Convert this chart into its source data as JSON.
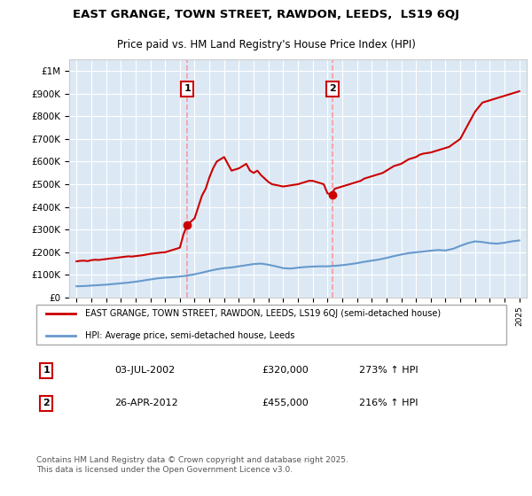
{
  "title": "EAST GRANGE, TOWN STREET, RAWDON, LEEDS,  LS19 6QJ",
  "subtitle": "Price paid vs. HM Land Registry's House Price Index (HPI)",
  "legend_line1": "EAST GRANGE, TOWN STREET, RAWDON, LEEDS, LS19 6QJ (semi-detached house)",
  "legend_line2": "HPI: Average price, semi-detached house, Leeds",
  "footer": "Contains HM Land Registry data © Crown copyright and database right 2025.\nThis data is licensed under the Open Government Licence v3.0.",
  "sale1_date": "03-JUL-2002",
  "sale1_price": 320000,
  "sale1_pct": "273% ↑ HPI",
  "sale2_date": "26-APR-2012",
  "sale2_price": 455000,
  "sale2_pct": "216% ↑ HPI",
  "sale1_year": 2002.5,
  "sale2_year": 2012.33,
  "background_color": "#dce9f5",
  "plot_bg_color": "#dce9f5",
  "red_color": "#cc0000",
  "blue_color": "#6699cc",
  "vline_color": "#ff9999",
  "ylim": [
    0,
    1050000
  ],
  "xlim": [
    1994.5,
    2025.5
  ],
  "hpi_data": {
    "years": [
      1995,
      1995.5,
      1996,
      1996.5,
      1997,
      1997.5,
      1998,
      1998.5,
      1999,
      1999.5,
      2000,
      2000.5,
      2001,
      2001.5,
      2002,
      2002.5,
      2003,
      2003.5,
      2004,
      2004.5,
      2005,
      2005.5,
      2006,
      2006.5,
      2007,
      2007.5,
      2008,
      2008.5,
      2009,
      2009.5,
      2010,
      2010.5,
      2011,
      2011.5,
      2012,
      2012.5,
      2013,
      2013.5,
      2014,
      2014.5,
      2015,
      2015.5,
      2016,
      2016.5,
      2017,
      2017.5,
      2018,
      2018.5,
      2019,
      2019.5,
      2020,
      2020.5,
      2021,
      2021.5,
      2022,
      2022.5,
      2023,
      2023.5,
      2024,
      2024.5,
      2025
    ],
    "values": [
      50000,
      51000,
      53000,
      55000,
      57000,
      60000,
      63000,
      66000,
      70000,
      75000,
      80000,
      85000,
      88000,
      90000,
      93000,
      97000,
      103000,
      110000,
      118000,
      125000,
      130000,
      133000,
      138000,
      143000,
      148000,
      150000,
      145000,
      138000,
      130000,
      128000,
      132000,
      135000,
      137000,
      138000,
      138000,
      140000,
      143000,
      147000,
      152000,
      158000,
      163000,
      168000,
      175000,
      183000,
      190000,
      196000,
      200000,
      203000,
      207000,
      210000,
      208000,
      215000,
      228000,
      240000,
      248000,
      245000,
      240000,
      238000,
      242000,
      248000,
      252000
    ]
  },
  "price_data": {
    "years": [
      1995,
      1995.25,
      1995.5,
      1995.75,
      1996,
      1996.25,
      1996.5,
      1996.75,
      1997,
      1997.25,
      1997.5,
      1997.75,
      1998,
      1998.25,
      1998.5,
      1998.75,
      1999,
      1999.25,
      1999.5,
      1999.75,
      2000,
      2000.25,
      2000.5,
      2000.75,
      2001,
      2001.25,
      2001.5,
      2001.75,
      2002,
      2002.25,
      2002.5,
      2003,
      2003.25,
      2003.5,
      2003.75,
      2004,
      2004.25,
      2004.5,
      2005,
      2005.25,
      2005.5,
      2006,
      2006.25,
      2006.5,
      2006.75,
      2007,
      2007.25,
      2007.5,
      2008,
      2008.25,
      2009,
      2009.5,
      2010,
      2010.25,
      2010.5,
      2010.75,
      2011,
      2011.25,
      2011.5,
      2011.75,
      2012,
      2012.25,
      2012.5,
      2013,
      2013.25,
      2013.5,
      2013.75,
      2014,
      2014.25,
      2014.5,
      2014.75,
      2015,
      2015.25,
      2015.5,
      2015.75,
      2016,
      2016.25,
      2016.5,
      2017,
      2017.25,
      2017.5,
      2017.75,
      2018,
      2018.25,
      2018.5,
      2019,
      2019.25,
      2019.5,
      2019.75,
      2020,
      2020.25,
      2021,
      2021.25,
      2021.5,
      2021.75,
      2022,
      2022.25,
      2022.5,
      2023,
      2023.25,
      2023.5,
      2023.75,
      2024,
      2024.25,
      2024.5,
      2025
    ],
    "values": [
      160000,
      162000,
      163000,
      161000,
      165000,
      167000,
      166000,
      168000,
      170000,
      172000,
      174000,
      176000,
      178000,
      180000,
      182000,
      181000,
      183000,
      185000,
      187000,
      190000,
      193000,
      195000,
      197000,
      199000,
      200000,
      205000,
      210000,
      215000,
      220000,
      280000,
      320000,
      350000,
      400000,
      450000,
      480000,
      530000,
      570000,
      600000,
      620000,
      590000,
      560000,
      570000,
      580000,
      590000,
      560000,
      550000,
      560000,
      540000,
      510000,
      500000,
      490000,
      495000,
      500000,
      505000,
      510000,
      515000,
      515000,
      510000,
      505000,
      500000,
      460000,
      455000,
      480000,
      490000,
      495000,
      500000,
      505000,
      510000,
      515000,
      525000,
      530000,
      535000,
      540000,
      545000,
      550000,
      560000,
      570000,
      580000,
      590000,
      600000,
      610000,
      615000,
      620000,
      630000,
      635000,
      640000,
      645000,
      650000,
      655000,
      660000,
      665000,
      700000,
      730000,
      760000,
      790000,
      820000,
      840000,
      860000,
      870000,
      875000,
      880000,
      885000,
      890000,
      895000,
      900000,
      910000
    ]
  }
}
